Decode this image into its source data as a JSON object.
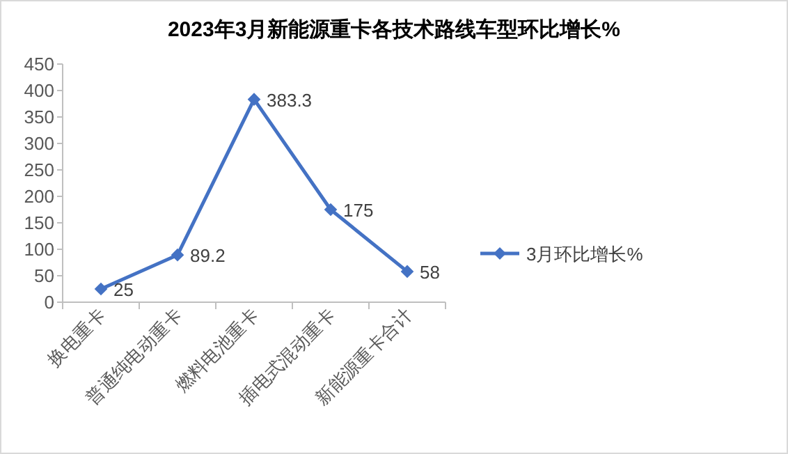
{
  "chart_data": {
    "type": "line",
    "title": "2023年3月新能源重卡各技术路线车型环比增长%",
    "categories": [
      "换电重卡",
      "普通纯电动重卡",
      "燃料电池重卡",
      "插电式混动重卡",
      "新能源重卡合计"
    ],
    "series": [
      {
        "name": "3月环比增长%",
        "color": "#4472c4",
        "values": [
          25,
          89.2,
          383.3,
          175,
          58
        ]
      }
    ],
    "ylim": [
      0,
      450
    ],
    "yticks": [
      0,
      50,
      100,
      150,
      200,
      250,
      300,
      350,
      400,
      450
    ],
    "marker": "diamond",
    "line_style": "solid",
    "legend": "right",
    "data_labels": true
  }
}
